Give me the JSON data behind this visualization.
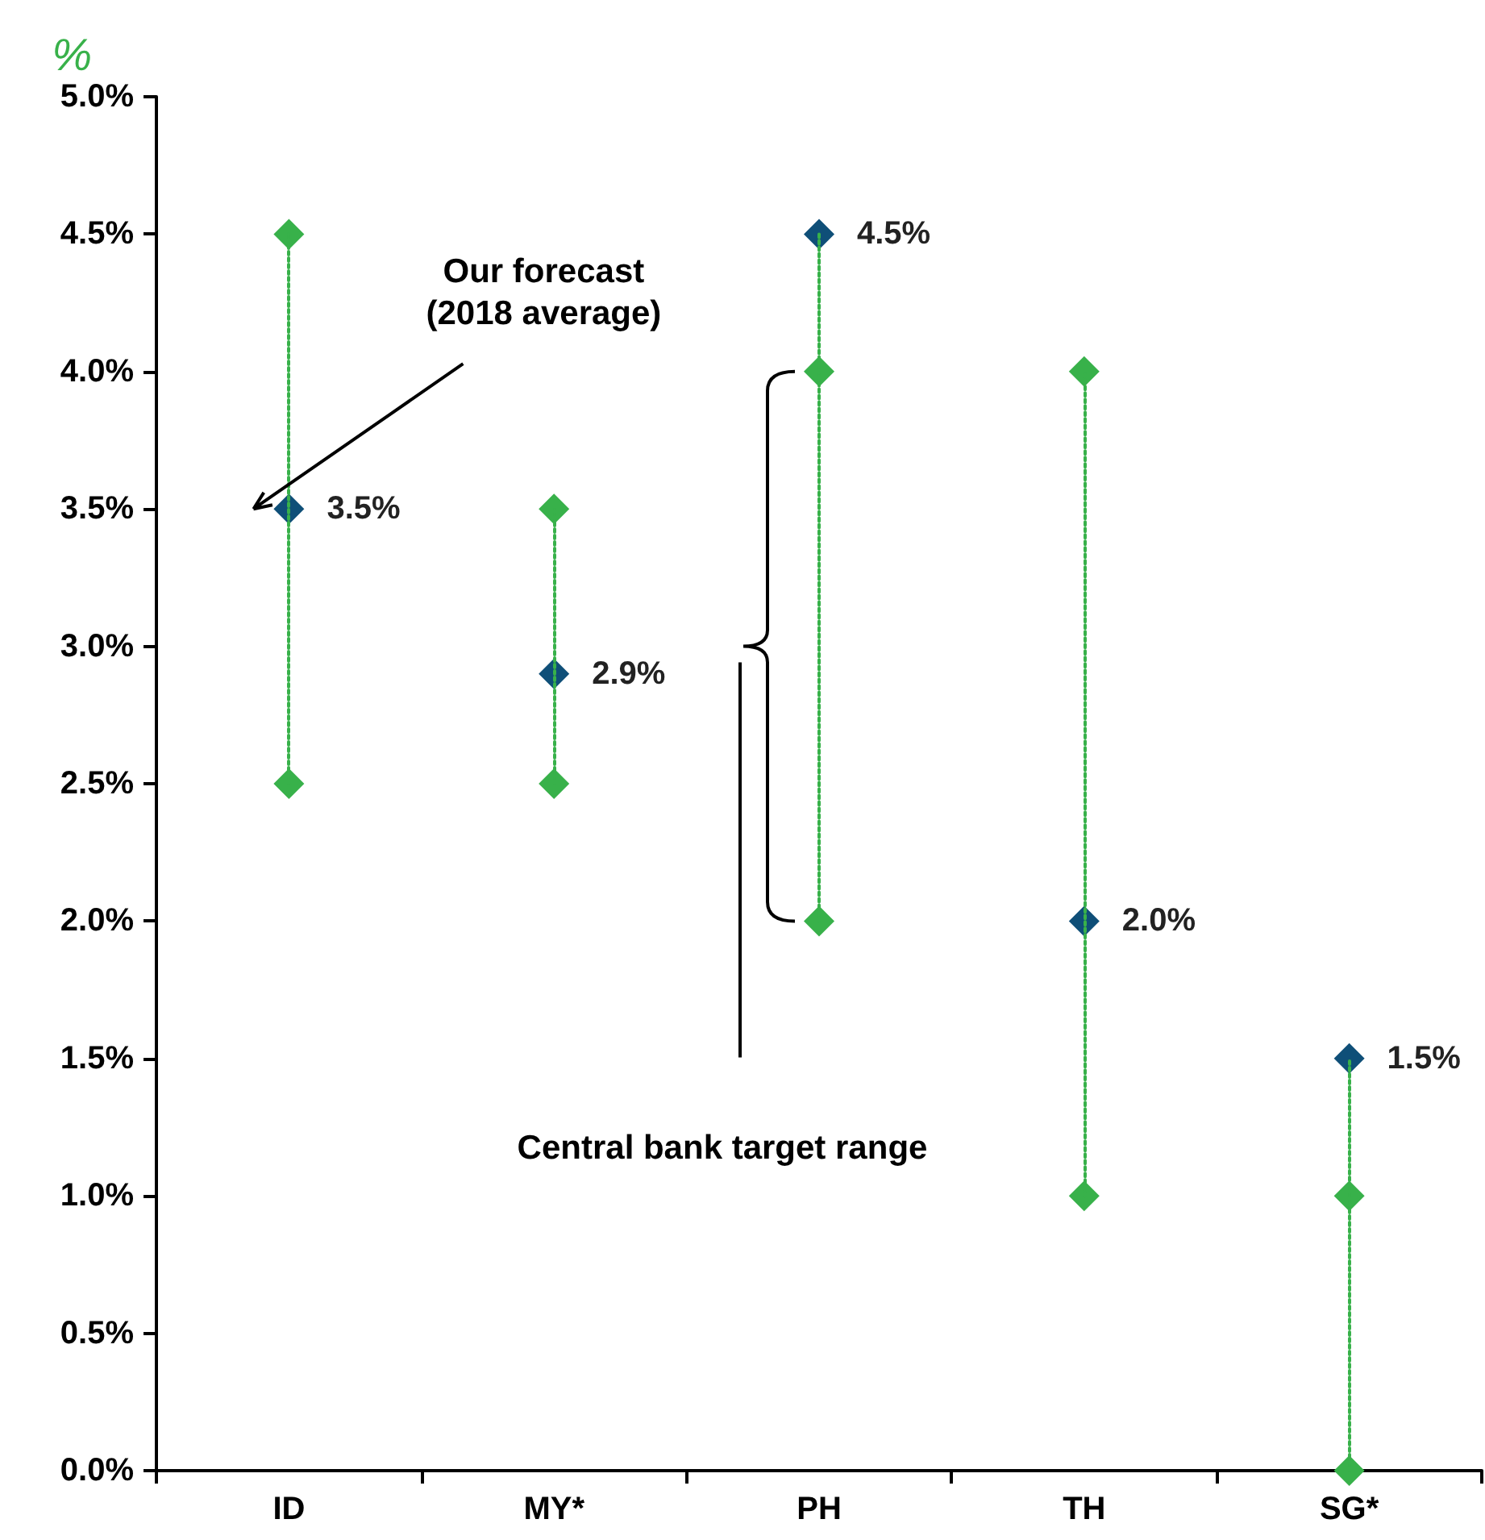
{
  "chart_data": {
    "type": "scatter",
    "ylabel": "%",
    "categories": [
      "ID",
      "MY*",
      "PH",
      "TH",
      "SG*"
    ],
    "series": [
      {
        "color": "#38b14a",
        "values": [
          2.5,
          2.5,
          2.0,
          1.0,
          0.0
        ]
      },
      {
        "color": "#38b14a",
        "values": [
          4.5,
          3.5,
          4.0,
          4.0,
          1.0
        ]
      },
      {
        "color": "#0f4f78",
        "values": [
          3.5,
          2.9,
          4.5,
          2.0,
          1.5
        ],
        "value_labels": [
          "3.5%",
          "2.9%",
          "4.5%",
          "2.0%",
          "1.5%"
        ]
      }
    ],
    "marker": "diamond",
    "line_style": "dotted",
    "ylim": [
      0,
      5
    ],
    "yticks": [
      {
        "value": 0,
        "label": "0.0%"
      },
      {
        "value": 0.5,
        "label": "0.5%"
      },
      {
        "value": 1,
        "label": "1.0%"
      },
      {
        "value": 1.5,
        "label": "1.5%"
      },
      {
        "value": 2,
        "label": "2.0%"
      },
      {
        "value": 2.5,
        "label": "2.5%"
      },
      {
        "value": 3,
        "label": "3.0%"
      },
      {
        "value": 3.5,
        "label": "3.5%"
      },
      {
        "value": 4,
        "label": "4.0%"
      },
      {
        "value": 4.5,
        "label": "4.5%"
      },
      {
        "value": 5,
        "label": "5.0%"
      }
    ],
    "grid": false,
    "annotations": [
      "Our forecast\n(2018 average)",
      "Central bank target range"
    ]
  }
}
